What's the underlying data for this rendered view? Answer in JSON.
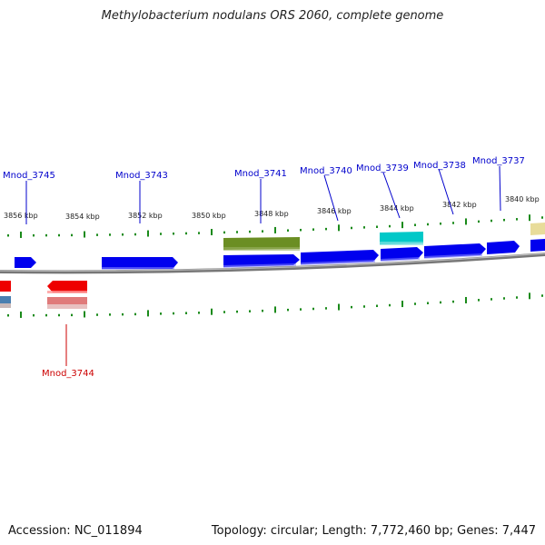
{
  "title": "Methylobacterium nodulans ORS 2060, complete genome",
  "footer": {
    "accession": "Accession: NC_011894",
    "topology": "Topology: circular; Length: 7,772,460 bp; Genes: 7,447"
  },
  "colors": {
    "forward_cds": "#0000ee",
    "reverse_cds": "#ee0000",
    "pseudo_reverse": "#e07a7a",
    "olive_feature": "#6b8e23",
    "cyan_feature": "#00c8c8",
    "tan_feature": "#e8dc9a",
    "tick": "#1a8a1a",
    "backbone": "#888888",
    "label_forward": "#0000cc",
    "label_reverse": "#cc0000"
  },
  "scale_labels": [
    "3856 kbp",
    "3854 kbp",
    "3852 kbp",
    "3850 kbp",
    "3848 kbp",
    "3846 kbp",
    "3844 kbp",
    "3842 kbp",
    "3840 kbp"
  ],
  "gene_labels_forward": [
    "Mnod_3745",
    "Mnod_3743",
    "Mnod_3741",
    "Mnod_3740",
    "Mnod_3739",
    "Mnod_3738",
    "Mnod_3737"
  ],
  "gene_labels_reverse": [
    "Mnod_3744"
  ]
}
